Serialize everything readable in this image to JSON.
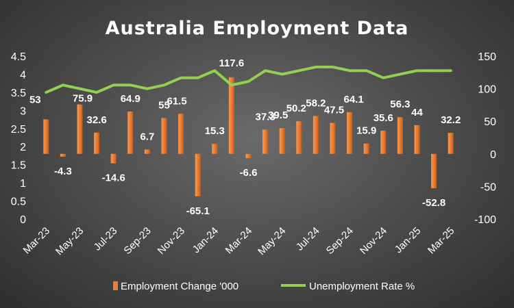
{
  "chart_data": {
    "type": "bar+line",
    "title": "Australia Employment Data",
    "x": [
      "Mar-23",
      "Apr-23",
      "May-23",
      "Jun-23",
      "Jul-23",
      "Aug-23",
      "Sep-23",
      "Oct-23",
      "Nov-23",
      "Dec-23",
      "Jan-24",
      "Feb-24",
      "Mar-24",
      "Apr-24",
      "May-24",
      "Jun-24",
      "Jul-24",
      "Aug-24",
      "Sep-24",
      "Oct-24",
      "Nov-24",
      "Dec-24",
      "Jan-25",
      "Feb-25",
      "Mar-25"
    ],
    "x_tick_labels": [
      "Mar-23",
      "May-23",
      "Jul-23",
      "Sep-23",
      "Nov-23",
      "Jan-24",
      "Mar-24",
      "May-24",
      "Jul-24",
      "Sep-24",
      "Nov-24",
      "Jan-25",
      "Mar-25"
    ],
    "series": [
      {
        "name": "Employment Change '000",
        "type": "bar",
        "axis": "right",
        "color": "#ED7D31",
        "values": [
          53,
          -4.3,
          75.9,
          32.6,
          -14.6,
          64.9,
          6.7,
          55,
          61.5,
          -65.1,
          15.3,
          117.6,
          -6.6,
          37.3,
          39.5,
          50.2,
          58.2,
          47.5,
          64.1,
          15.9,
          35.6,
          56.3,
          44,
          -52.8,
          32.2
        ],
        "labels": [
          "53",
          "-4.3",
          "75.9",
          "32.6",
          "-14.6",
          "64.9",
          "6.7",
          "55",
          "61.5",
          "-65.1",
          "15.3",
          "117.6",
          "-6.6",
          "37.3",
          "39.5",
          "50.2",
          "58.2",
          "47.5",
          "64.1",
          "15.9",
          "35.6",
          "56.3",
          "44",
          "-52.8",
          "32.2"
        ]
      },
      {
        "name": "Unemployment Rate %",
        "type": "line",
        "axis": "left",
        "color": "#92D050",
        "values": [
          3.5,
          3.7,
          3.6,
          3.5,
          3.7,
          3.7,
          3.6,
          3.7,
          3.9,
          3.9,
          4.1,
          3.7,
          3.8,
          4.1,
          4.0,
          4.1,
          4.2,
          4.2,
          4.1,
          4.1,
          3.9,
          4.0,
          4.1,
          4.1,
          4.1
        ]
      }
    ],
    "y_left": {
      "ylim": [
        0,
        4.5
      ],
      "ticks": [
        "0",
        "0.5",
        "1",
        "1.5",
        "2",
        "2.5",
        "3",
        "3.5",
        "4",
        "4.5"
      ]
    },
    "y_right": {
      "ylim": [
        -100,
        150
      ],
      "ticks": [
        "-100",
        "-50",
        "0",
        "50",
        "100",
        "150"
      ]
    },
    "grid": false,
    "legend": "bottom"
  }
}
